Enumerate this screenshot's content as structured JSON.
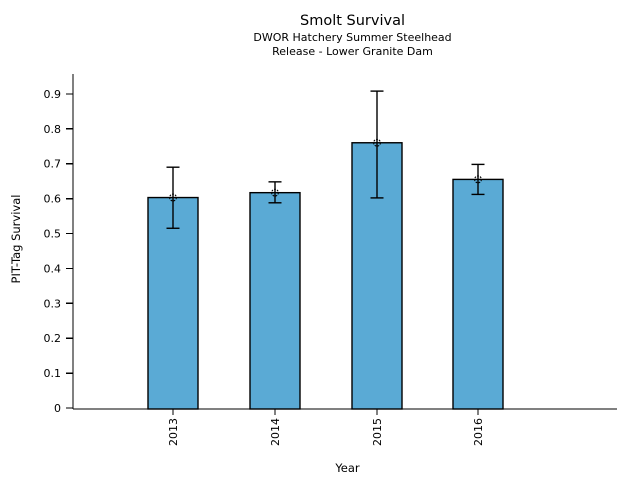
{
  "header": {
    "title": "Smolt Survival",
    "subtitle_line1": "DWOR Hatchery Summer Steelhead",
    "subtitle_line2": "Release - Lower Granite Dam"
  },
  "chart_data": {
    "type": "bar",
    "title": "Smolt Survival",
    "subtitle": [
      "DWOR Hatchery Summer Steelhead",
      "Release - Lower Granite Dam"
    ],
    "xlabel": "Year",
    "ylabel": "PIT-Tag Survival",
    "categories": [
      "2013",
      "2014",
      "2015",
      "2016"
    ],
    "values": [
      0.603,
      0.617,
      0.76,
      0.655
    ],
    "error_low": [
      0.515,
      0.588,
      0.602,
      0.612
    ],
    "error_high": [
      0.69,
      0.648,
      0.908,
      0.698
    ],
    "point_marker": "open-circle",
    "ylim": [
      0,
      0.93
    ],
    "yticks": [
      0,
      0.1,
      0.2,
      0.3,
      0.4,
      0.5,
      0.6,
      0.7,
      0.8,
      0.9
    ],
    "ytick_labels": [
      "0",
      "0.1",
      "0.2",
      "0.3",
      "0.4",
      "0.5",
      "0.6",
      "0.7",
      "0.8",
      "0.9"
    ],
    "xtick_rotation_deg": 90,
    "grid": false,
    "legend": "none",
    "bar_color": "#5AAAD5",
    "bar_edge_color": "#000000",
    "errorbar_color": "#000000",
    "axis_color": "#000000"
  }
}
